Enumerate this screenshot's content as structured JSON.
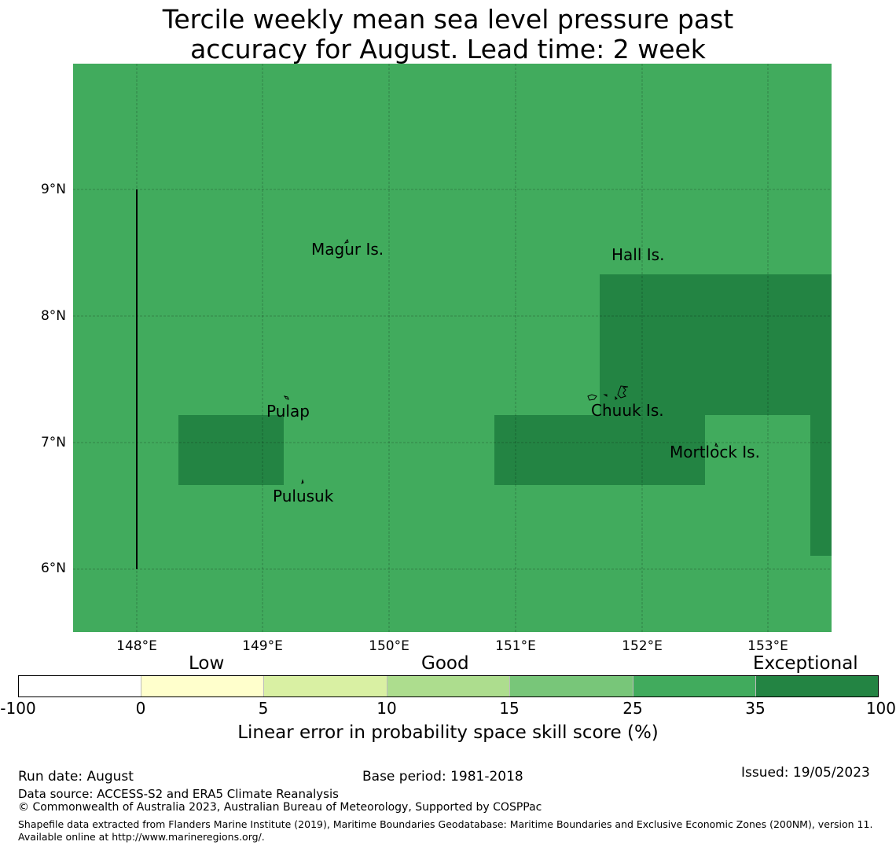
{
  "title_line1": "Tercile weekly mean sea level pressure past",
  "title_line2": "accuracy for August. Lead time: 2 week",
  "map": {
    "lon_range": [
      147.5,
      153.5
    ],
    "lat_range": [
      5.5,
      10.0
    ],
    "base_color": "#41ab5d",
    "exceptional_color": "#238443",
    "lat_ticks": [
      {
        "value": 9,
        "label": "9°N"
      },
      {
        "value": 8,
        "label": "8°N"
      },
      {
        "value": 7,
        "label": "7°N"
      },
      {
        "value": 6,
        "label": "6°N"
      }
    ],
    "lon_ticks": [
      {
        "value": 148,
        "label": "148°E"
      },
      {
        "value": 149,
        "label": "149°E"
      },
      {
        "value": 150,
        "label": "150°E"
      },
      {
        "value": 151,
        "label": "151°E"
      },
      {
        "value": 152,
        "label": "152°E"
      },
      {
        "value": 153,
        "label": "153°E"
      }
    ],
    "places": [
      {
        "name": "Magur Is.",
        "lon": 149.67,
        "lat": 8.6
      },
      {
        "name": "Hall Is.",
        "lon": 151.73,
        "lat": 8.55
      },
      {
        "name": "Pulap",
        "lon": 149.18,
        "lat": 7.35
      },
      {
        "name": "Chuuk Is.",
        "lon": 151.85,
        "lat": 7.4
      },
      {
        "name": "Mortlock Is.",
        "lon": 152.58,
        "lat": 6.97
      },
      {
        "name": "Pulusuk",
        "lon": 149.31,
        "lat": 6.7
      }
    ]
  },
  "colorbar": {
    "categories": [
      "Low",
      "Good",
      "Exceptional"
    ],
    "bins": [
      {
        "from": "-100",
        "to": "0",
        "color": "#ffffff"
      },
      {
        "from": "0",
        "to": "5",
        "color": "#ffffcc"
      },
      {
        "from": "5",
        "to": "10",
        "color": "#d9f0a3"
      },
      {
        "from": "10",
        "to": "15",
        "color": "#addd8e"
      },
      {
        "from": "15",
        "to": "25",
        "color": "#78c679"
      },
      {
        "from": "25",
        "to": "35",
        "color": "#41ab5d"
      },
      {
        "from": "35",
        "to": "100",
        "color": "#238443"
      }
    ],
    "ticks": [
      "-100",
      "0",
      "5",
      "10",
      "15",
      "25",
      "35",
      "100"
    ],
    "label": "Linear error in probability space skill score (%)"
  },
  "footer": {
    "run_date": "Run date: August",
    "base_period": "Base period: 1981-2018",
    "issued": "Issued: 19/05/2023",
    "data_source": "Data source: ACCESS-S2 and ERA5 Climate Reanalysis",
    "copyright": "© Commonwealth of Australia 2023, Australian Bureau of Meteorology, Supported by COSPPac",
    "shapefile_note": "Shapefile data extracted from Flanders Marine Institute (2019), Maritime Boundaries Geodatabase: Maritime Boundaries and Exclusive Economic Zones (200NM), version 11. Available online at http://www.marineregions.org/."
  }
}
